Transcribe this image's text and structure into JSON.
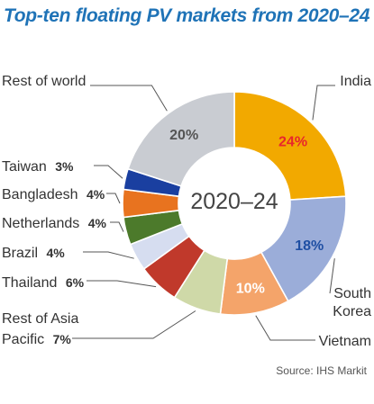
{
  "chart_data": {
    "type": "pie",
    "title": "Top-ten floating PV markets from 2020–24",
    "center_label": "2020–24",
    "source": "Source: IHS Markit",
    "segments": [
      {
        "name": "India",
        "value": 24,
        "label": "24%",
        "color": "#f2a900",
        "value_label_color": "#e8262b"
      },
      {
        "name": "South Korea",
        "value": 18,
        "label": "18%",
        "color": "#9badd9",
        "value_label_color": "#1f4fa3"
      },
      {
        "name": "Vietnam",
        "value": 10,
        "label": "10%",
        "color": "#f4a46a",
        "value_label_color": "#ffffff"
      },
      {
        "name": "Rest of Asia Pacific",
        "value": 7,
        "label": "7%",
        "color": "#cfd9a8"
      },
      {
        "name": "Thailand",
        "value": 6,
        "label": "6%",
        "color": "#c0392b"
      },
      {
        "name": "Brazil",
        "value": 4,
        "label": "4%",
        "color": "#d6ddf0"
      },
      {
        "name": "Netherlands",
        "value": 4,
        "label": "4%",
        "color": "#4c7a2b"
      },
      {
        "name": "Bangladesh",
        "value": 4,
        "label": "4%",
        "color": "#e8731f"
      },
      {
        "name": "Taiwan",
        "value": 3,
        "label": "3%",
        "color": "#1a3fa0"
      },
      {
        "name": "Rest of world",
        "value": 20,
        "label": "20%",
        "color": "#c9ccd2",
        "value_label_color": "#555555"
      }
    ],
    "legend_labels": {
      "india": "India",
      "south_korea": [
        "South",
        "Korea"
      ],
      "vietnam": "Vietnam",
      "rest_of_asia_pacific": [
        "Rest of Asia",
        "Pacific"
      ],
      "thailand": "Thailand",
      "brazil": "Brazil",
      "netherlands": "Netherlands",
      "bangladesh": "Bangladesh",
      "taiwan": "Taiwan",
      "rest_of_world": "Rest of world"
    }
  }
}
